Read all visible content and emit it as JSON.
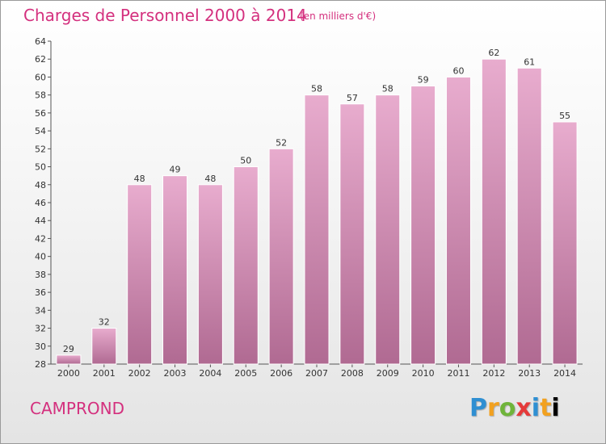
{
  "header": {
    "title": "Charges de Personnel 2000 à 2014",
    "subtitle": "(en milliers d'€)"
  },
  "footer": {
    "commune": "CAMPROND",
    "logo_letters": [
      "P",
      "r",
      "o",
      "x",
      "i",
      "t",
      "i"
    ]
  },
  "colors": {
    "accent": "#d4307e",
    "bar_top": "#e8acce",
    "bar_bottom": "#b06a92"
  },
  "chart_data": {
    "type": "bar",
    "categories": [
      "2000",
      "2001",
      "2002",
      "2003",
      "2004",
      "2005",
      "2006",
      "2007",
      "2008",
      "2009",
      "2010",
      "2011",
      "2012",
      "2013",
      "2014"
    ],
    "values": [
      29,
      32,
      48,
      49,
      48,
      50,
      52,
      58,
      57,
      58,
      59,
      60,
      62,
      61,
      55
    ],
    "title": "Charges de Personnel 2000 à 2014",
    "subtitle": "(en milliers d'€)",
    "ylim": [
      28,
      64
    ],
    "yticks": [
      28,
      30,
      32,
      34,
      36,
      38,
      40,
      42,
      44,
      46,
      48,
      50,
      52,
      54,
      56,
      58,
      60,
      62,
      64
    ],
    "grid": false,
    "legend": "none"
  }
}
